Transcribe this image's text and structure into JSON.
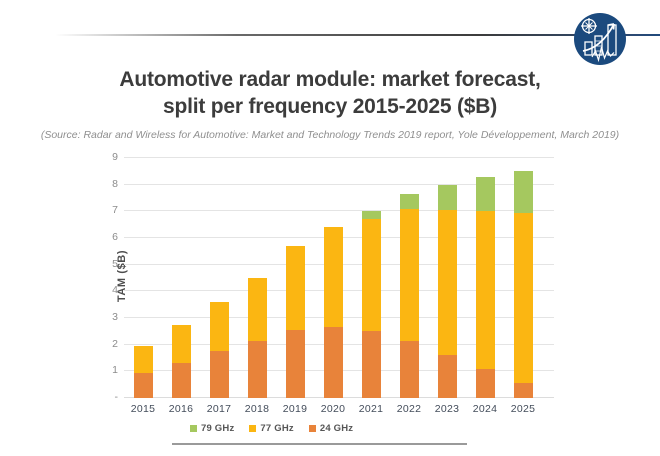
{
  "title": {
    "line1": "Automotive radar module: market forecast,",
    "line2": "split per frequency 2015-2025 ($B)"
  },
  "source_note": "(Source: Radar and Wireless for Automotive: Market and Technology Trends 2019 report, Yole Développement, March 2019)",
  "logo": {
    "semantic": "yole-developpement-logo",
    "circle_color": "#1b4a7e",
    "glyph_color": "#ffffff"
  },
  "chart_data": {
    "type": "bar",
    "stacked": true,
    "categories": [
      "2015",
      "2016",
      "2017",
      "2018",
      "2019",
      "2020",
      "2021",
      "2022",
      "2023",
      "2024",
      "2025"
    ],
    "series": [
      {
        "name": "24 GHz",
        "color": "#E8833A",
        "values": [
          0.95,
          1.3,
          1.75,
          2.15,
          2.55,
          2.65,
          2.5,
          2.15,
          1.6,
          1.1,
          0.55
        ]
      },
      {
        "name": "77 GHz",
        "color": "#FBB612",
        "values": [
          1.0,
          1.45,
          1.85,
          2.35,
          3.15,
          3.75,
          4.2,
          4.95,
          5.45,
          5.9,
          6.4
        ]
      },
      {
        "name": "79 GHz",
        "color": "#A5C85F",
        "values": [
          0,
          0,
          0,
          0,
          0,
          0,
          0.3,
          0.55,
          0.95,
          1.3,
          1.55
        ]
      }
    ],
    "totals": [
      1.95,
      2.75,
      3.6,
      4.5,
      5.7,
      6.4,
      7.0,
      7.65,
      8.0,
      8.3,
      8.5
    ],
    "title": "",
    "xlabel": "",
    "ylabel": "TAM ($B)",
    "ylim": [
      0,
      9
    ],
    "ytick_labels": [
      "-",
      "1",
      "2",
      "3",
      "4",
      "5",
      "6",
      "7",
      "8",
      "9"
    ],
    "grid": true,
    "legend_position": "bottom",
    "legend_order": [
      "79 GHz",
      "77 GHz",
      "24 GHz"
    ],
    "gridline_color": "#e4e4e4"
  }
}
